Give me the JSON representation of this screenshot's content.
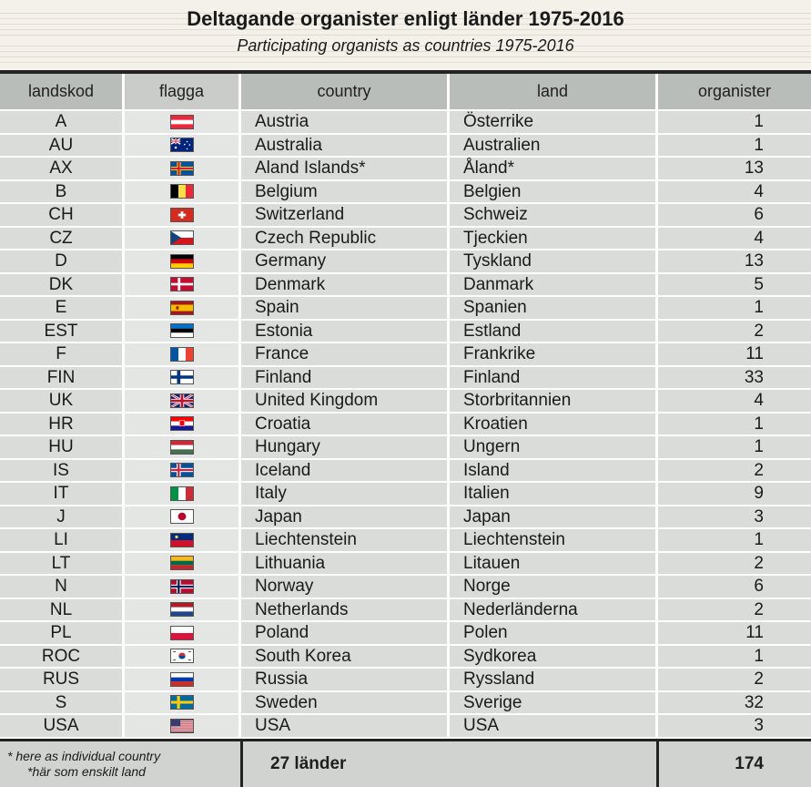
{
  "title": "Deltagande organister enligt länder 1975-2016",
  "subtitle": "Participating organists as countries 1975-2016",
  "columns": {
    "code": "landskod",
    "flag": "flagga",
    "country": "country",
    "land": "land",
    "count": "organister"
  },
  "rows": [
    {
      "code": "A",
      "country": "Austria",
      "land": "Österrike",
      "count": "1",
      "flag": "austria-flag-icon"
    },
    {
      "code": "AU",
      "country": "Australia",
      "land": "Australien",
      "count": "1",
      "flag": "australia-flag-icon"
    },
    {
      "code": "AX",
      "country": "Aland Islands*",
      "land": "Åland*",
      "count": "13",
      "flag": "aland-flag-icon"
    },
    {
      "code": "B",
      "country": "Belgium",
      "land": "Belgien",
      "count": "4",
      "flag": "belgium-flag-icon"
    },
    {
      "code": "CH",
      "country": "Switzerland",
      "land": "Schweiz",
      "count": "6",
      "flag": "switzerland-flag-icon"
    },
    {
      "code": "CZ",
      "country": "Czech Republic",
      "land": "Tjeckien",
      "count": "4",
      "flag": "czech-flag-icon"
    },
    {
      "code": "D",
      "country": "Germany",
      "land": "Tyskland",
      "count": "13",
      "flag": "germany-flag-icon"
    },
    {
      "code": "DK",
      "country": "Denmark",
      "land": "Danmark",
      "count": "5",
      "flag": "denmark-flag-icon"
    },
    {
      "code": "E",
      "country": "Spain",
      "land": "Spanien",
      "count": "1",
      "flag": "spain-flag-icon"
    },
    {
      "code": "EST",
      "country": "Estonia",
      "land": "Estland",
      "count": "2",
      "flag": "estonia-flag-icon"
    },
    {
      "code": "F",
      "country": "France",
      "land": "Frankrike",
      "count": "11",
      "flag": "france-flag-icon"
    },
    {
      "code": "FIN",
      "country": "Finland",
      "land": "Finland",
      "count": "33",
      "flag": "finland-flag-icon"
    },
    {
      "code": "UK",
      "country": "United Kingdom",
      "land": "Storbritannien",
      "count": "4",
      "flag": "uk-flag-icon"
    },
    {
      "code": "HR",
      "country": "Croatia",
      "land": "Kroatien",
      "count": "1",
      "flag": "croatia-flag-icon"
    },
    {
      "code": "HU",
      "country": "Hungary",
      "land": "Ungern",
      "count": "1",
      "flag": "hungary-flag-icon"
    },
    {
      "code": "IS",
      "country": "Iceland",
      "land": "Island",
      "count": "2",
      "flag": "iceland-flag-icon"
    },
    {
      "code": "IT",
      "country": "Italy",
      "land": "Italien",
      "count": "9",
      "flag": "italy-flag-icon"
    },
    {
      "code": "J",
      "country": "Japan",
      "land": "Japan",
      "count": "3",
      "flag": "japan-flag-icon"
    },
    {
      "code": "LI",
      "country": "Liechtenstein",
      "land": "Liechtenstein",
      "count": "1",
      "flag": "liechtenstein-flag-icon"
    },
    {
      "code": "LT",
      "country": "Lithuania",
      "land": "Litauen",
      "count": "2",
      "flag": "lithuania-flag-icon"
    },
    {
      "code": "N",
      "country": "Norway",
      "land": "Norge",
      "count": "6",
      "flag": "norway-flag-icon"
    },
    {
      "code": "NL",
      "country": "Netherlands",
      "land": "Nederländerna",
      "count": "2",
      "flag": "netherlands-flag-icon"
    },
    {
      "code": "PL",
      "country": "Poland",
      "land": "Polen",
      "count": "11",
      "flag": "poland-flag-icon"
    },
    {
      "code": "ROC",
      "country": "South Korea",
      "land": "Sydkorea",
      "count": "1",
      "flag": "south-korea-flag-icon"
    },
    {
      "code": "RUS",
      "country": "Russia",
      "land": "Ryssland",
      "count": "2",
      "flag": "russia-flag-icon"
    },
    {
      "code": "S",
      "country": "Sweden",
      "land": "Sverige",
      "count": "32",
      "flag": "sweden-flag-icon"
    },
    {
      "code": "USA",
      "country": "USA",
      "land": "USA",
      "count": "3",
      "flag": "usa-flag-icon"
    }
  ],
  "footer": {
    "note_en": "* here as individual country",
    "note_sv": "*här som enskilt land",
    "countries_total": "27 länder",
    "organists_total": "174"
  }
}
